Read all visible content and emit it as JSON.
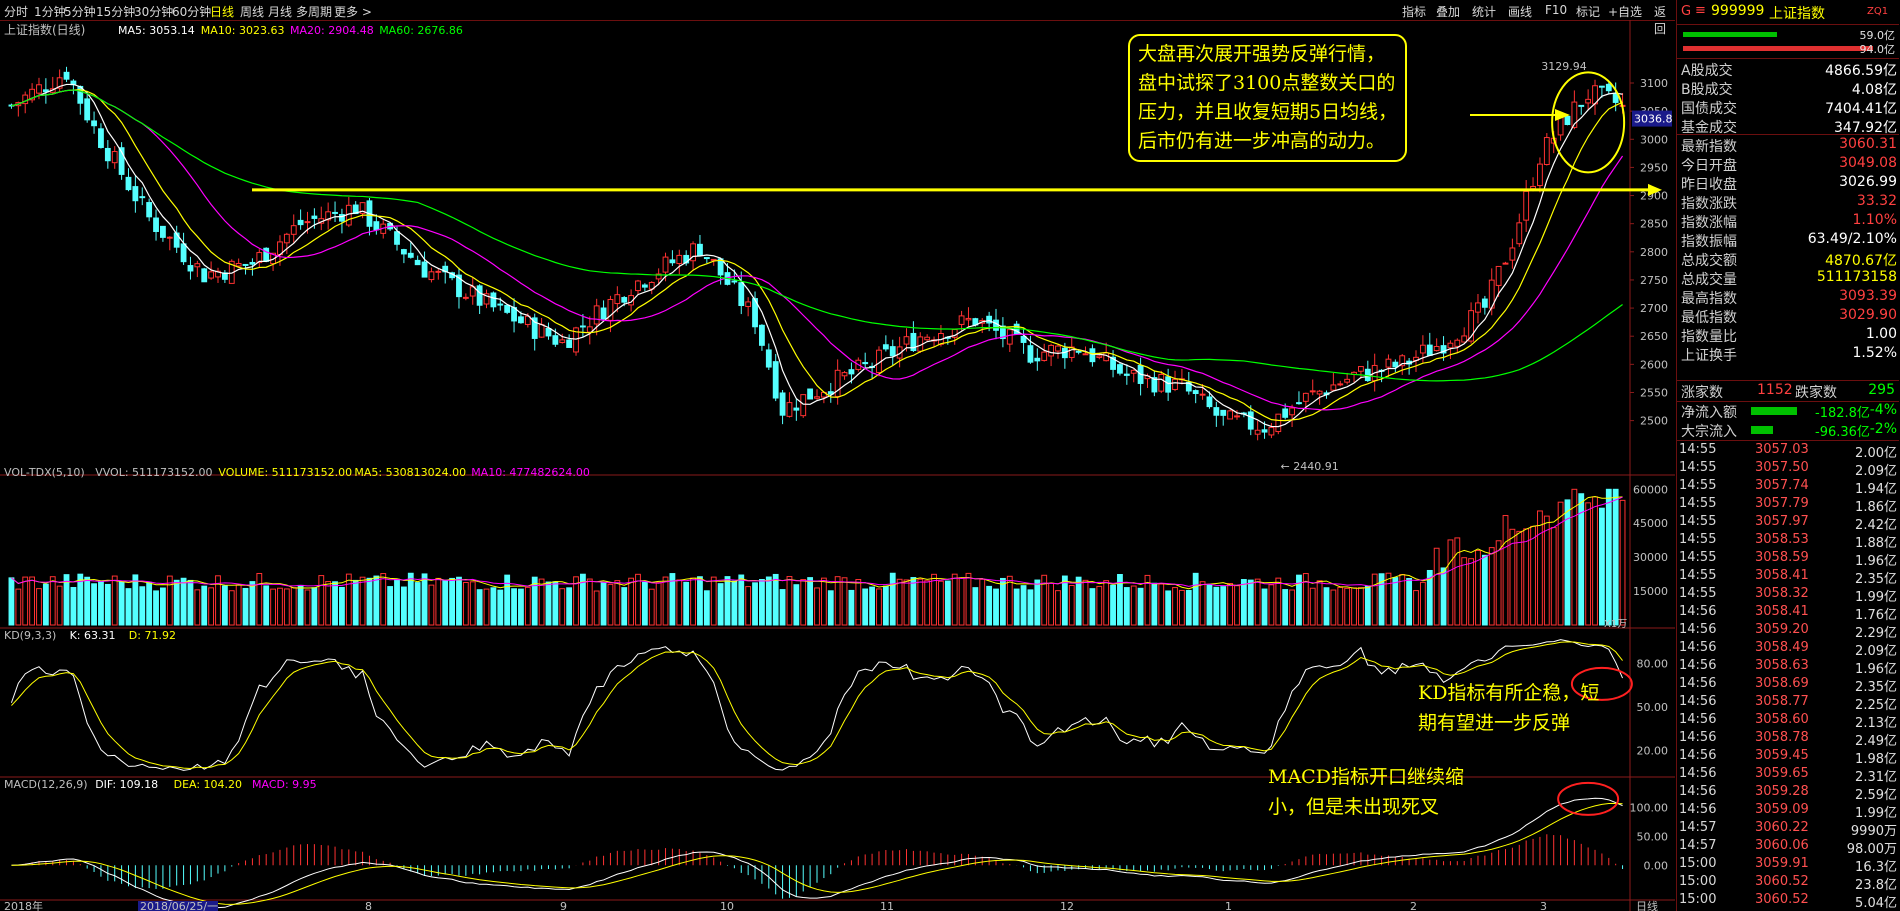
{
  "topbar": {
    "periods": [
      "分时",
      "1分钟",
      "5分钟",
      "15分钟",
      "30分钟",
      "60分钟",
      "日线",
      "周线",
      "月线",
      "多周期",
      "更多 >"
    ],
    "active_period": "日线",
    "tools": [
      "指标",
      "叠加",
      "统计",
      "画线",
      "F10",
      "标记",
      "+自选",
      "返回"
    ]
  },
  "main_title": "上证指数(日线)",
  "ma_legend": [
    {
      "label": "MA5: 3053.14",
      "color": "#ffffff"
    },
    {
      "label": "MA10: 3023.63",
      "color": "#ffff00"
    },
    {
      "label": "MA20: 2904.48",
      "color": "#ff00ff"
    },
    {
      "label": "MA60: 2676.86",
      "color": "#00ff00"
    }
  ],
  "vol_legend": [
    {
      "label": "VOL-TDX(5,10)",
      "color": "#c0c0c0"
    },
    {
      "label": "VVOL: 511173152.00",
      "color": "#c0c0c0"
    },
    {
      "label": "VOLUME: 511173152.00",
      "color": "#ffff00"
    },
    {
      "label": "MA5: 530813024.00",
      "color": "#ffff00"
    },
    {
      "label": "MA10: 477482624.00",
      "color": "#ff00ff"
    }
  ],
  "kd_legend": [
    {
      "label": "KD(9,3,3)",
      "color": "#c0c0c0"
    },
    {
      "label": "K: 63.31",
      "color": "#ffffff"
    },
    {
      "label": "D: 71.92",
      "color": "#ffff00"
    }
  ],
  "macd_legend": [
    {
      "label": "MACD(12,26,9)",
      "color": "#c0c0c0"
    },
    {
      "label": "DIF: 109.18",
      "color": "#ffffff"
    },
    {
      "label": "DEA: 104.20",
      "color": "#ffff00"
    },
    {
      "label": "MACD: 9.95",
      "color": "#ff00ff"
    }
  ],
  "price_marks": {
    "high": "3129.94",
    "low": "2440.91",
    "current": "3036.8"
  },
  "vol_unit": "X1万",
  "x_labels": [
    "2018年",
    "2018/06/25/一",
    "8",
    "9",
    "10",
    "11",
    "12",
    "1",
    "2",
    "3"
  ],
  "x_axis_right": "日线",
  "annotations": {
    "main": [
      "大盘再次展开强势反弹行情，",
      "盘中试探了3100点整数关口的",
      "压力，并且收复短期5日均线，",
      "后市仍有进一步冲高的动力。"
    ],
    "kd": [
      "KD指标有所企稳，短",
      "期有望进一步反弹"
    ],
    "macd": [
      "MACD指标开口继续缩",
      "小，但是未出现死叉"
    ]
  },
  "chart_data": [
    {
      "type": "candlestick",
      "title": "上证指数(日线)",
      "y_ticks": [
        2500,
        2550,
        2600,
        2650,
        2700,
        2750,
        2800,
        2850,
        2900,
        2950,
        3000,
        3050,
        3100
      ],
      "ylim": [
        2430,
        3180
      ],
      "grid": false,
      "anchor_points": [
        [
          0,
          3060
        ],
        [
          8,
          3120
        ],
        [
          12,
          3020
        ],
        [
          20,
          2860
        ],
        [
          28,
          2760
        ],
        [
          35,
          2780
        ],
        [
          42,
          2850
        ],
        [
          50,
          2880
        ],
        [
          60,
          2770
        ],
        [
          70,
          2700
        ],
        [
          80,
          2640
        ],
        [
          90,
          2740
        ],
        [
          100,
          2810
        ],
        [
          108,
          2680
        ],
        [
          112,
          2520
        ],
        [
          118,
          2560
        ],
        [
          125,
          2600
        ],
        [
          132,
          2650
        ],
        [
          140,
          2680
        ],
        [
          148,
          2620
        ],
        [
          155,
          2630
        ],
        [
          162,
          2580
        ],
        [
          170,
          2560
        ],
        [
          176,
          2500
        ],
        [
          182,
          2490
        ],
        [
          188,
          2540
        ],
        [
          195,
          2580
        ],
        [
          202,
          2600
        ],
        [
          208,
          2640
        ],
        [
          214,
          2700
        ],
        [
          218,
          2820
        ],
        [
          222,
          2970
        ],
        [
          226,
          3040
        ],
        [
          229,
          3080
        ],
        [
          232,
          3070
        ],
        [
          234,
          3060
        ]
      ],
      "hline": 2910,
      "last_close": 3060.31,
      "series": [
        {
          "name": "MA5",
          "period": 5
        },
        {
          "name": "MA10",
          "period": 10
        },
        {
          "name": "MA20",
          "period": 20
        },
        {
          "name": "MA60",
          "period": 60
        }
      ]
    },
    {
      "type": "bar",
      "title": "VOL-TDX(5,10)",
      "y_ticks": [
        15000,
        30000,
        45000,
        60000
      ],
      "ylim": [
        0,
        65000
      ],
      "unit": "X1万"
    },
    {
      "type": "line",
      "title": "KD(9,3,3)",
      "y_ticks": [
        20,
        50,
        80
      ],
      "ylim": [
        5,
        95
      ]
    },
    {
      "type": "bar",
      "title": "MACD(12,26,9)",
      "y_ticks": [
        0,
        50,
        100
      ],
      "ylim": [
        -60,
        130
      ]
    }
  ],
  "side": {
    "header": {
      "code": "999999",
      "name": "上证指数",
      "tag": "ZQ1",
      "g": "G",
      "bar1": "59.0亿",
      "bar2": "94.0亿"
    },
    "stats": [
      {
        "k": "A股成交",
        "v": "4866.59亿",
        "c": "#ffffff"
      },
      {
        "k": "B股成交",
        "v": "4.08亿",
        "c": "#ffffff"
      },
      {
        "k": "国债成交",
        "v": "7404.41亿",
        "c": "#ffffff"
      },
      {
        "k": "基金成交",
        "v": "347.92亿",
        "c": "#ffffff"
      },
      {
        "k": "最新指数",
        "v": "3060.31",
        "c": "#ff4040"
      },
      {
        "k": "今日开盘",
        "v": "3049.08",
        "c": "#ff4040"
      },
      {
        "k": "昨日收盘",
        "v": "3026.99",
        "c": "#ffffff"
      },
      {
        "k": "指数涨跌",
        "v": "33.32",
        "c": "#ff4040"
      },
      {
        "k": "指数涨幅",
        "v": "1.10%",
        "c": "#ff4040"
      },
      {
        "k": "指数振幅",
        "v": "63.49/2.10%",
        "c": "#ffffff"
      },
      {
        "k": "总成交额",
        "v": "4870.67亿",
        "c": "#ffff00"
      },
      {
        "k": "总成交量",
        "v": "511173158",
        "c": "#ffff00"
      },
      {
        "k": "最高指数",
        "v": "3093.39",
        "c": "#ff4040"
      },
      {
        "k": "最低指数",
        "v": "3029.90",
        "c": "#ff4040"
      },
      {
        "k": "指数量比",
        "v": "1.00",
        "c": "#ffffff"
      },
      {
        "k": "上证换手",
        "v": "1.52%",
        "c": "#ffffff"
      }
    ],
    "updown": {
      "up_label": "涨家数",
      "up": "1152",
      "down_label": "跌家数",
      "down": "295"
    },
    "flows": [
      {
        "k": "净流入额",
        "v": "-182.8亿",
        "p": "-4%"
      },
      {
        "k": "大宗流入",
        "v": "-96.36亿",
        "p": "-2%"
      }
    ],
    "ticks": [
      [
        "14:55",
        "3057.03",
        "2.00亿"
      ],
      [
        "14:55",
        "3057.50",
        "2.09亿"
      ],
      [
        "14:55",
        "3057.74",
        "1.94亿"
      ],
      [
        "14:55",
        "3057.79",
        "1.86亿"
      ],
      [
        "14:55",
        "3057.97",
        "2.42亿"
      ],
      [
        "14:55",
        "3058.53",
        "1.88亿"
      ],
      [
        "14:55",
        "3058.59",
        "1.96亿"
      ],
      [
        "14:55",
        "3058.41",
        "2.35亿"
      ],
      [
        "14:55",
        "3058.32",
        "1.99亿"
      ],
      [
        "14:56",
        "3058.41",
        "1.76亿"
      ],
      [
        "14:56",
        "3059.20",
        "2.29亿"
      ],
      [
        "14:56",
        "3058.49",
        "2.09亿"
      ],
      [
        "14:56",
        "3058.63",
        "1.96亿"
      ],
      [
        "14:56",
        "3058.69",
        "2.35亿"
      ],
      [
        "14:56",
        "3058.77",
        "2.25亿"
      ],
      [
        "14:56",
        "3058.60",
        "2.13亿"
      ],
      [
        "14:56",
        "3058.78",
        "2.49亿"
      ],
      [
        "14:56",
        "3059.45",
        "1.98亿"
      ],
      [
        "14:56",
        "3059.65",
        "2.31亿"
      ],
      [
        "14:56",
        "3059.28",
        "2.59亿"
      ],
      [
        "14:56",
        "3059.09",
        "1.99亿"
      ],
      [
        "14:57",
        "3060.22",
        "9990万"
      ],
      [
        "14:57",
        "3060.06",
        "98.00万"
      ],
      [
        "15:00",
        "3059.91",
        "16.3亿"
      ],
      [
        "15:00",
        "3060.52",
        "23.8亿"
      ],
      [
        "15:00",
        "3060.52",
        "5.04亿"
      ]
    ]
  }
}
